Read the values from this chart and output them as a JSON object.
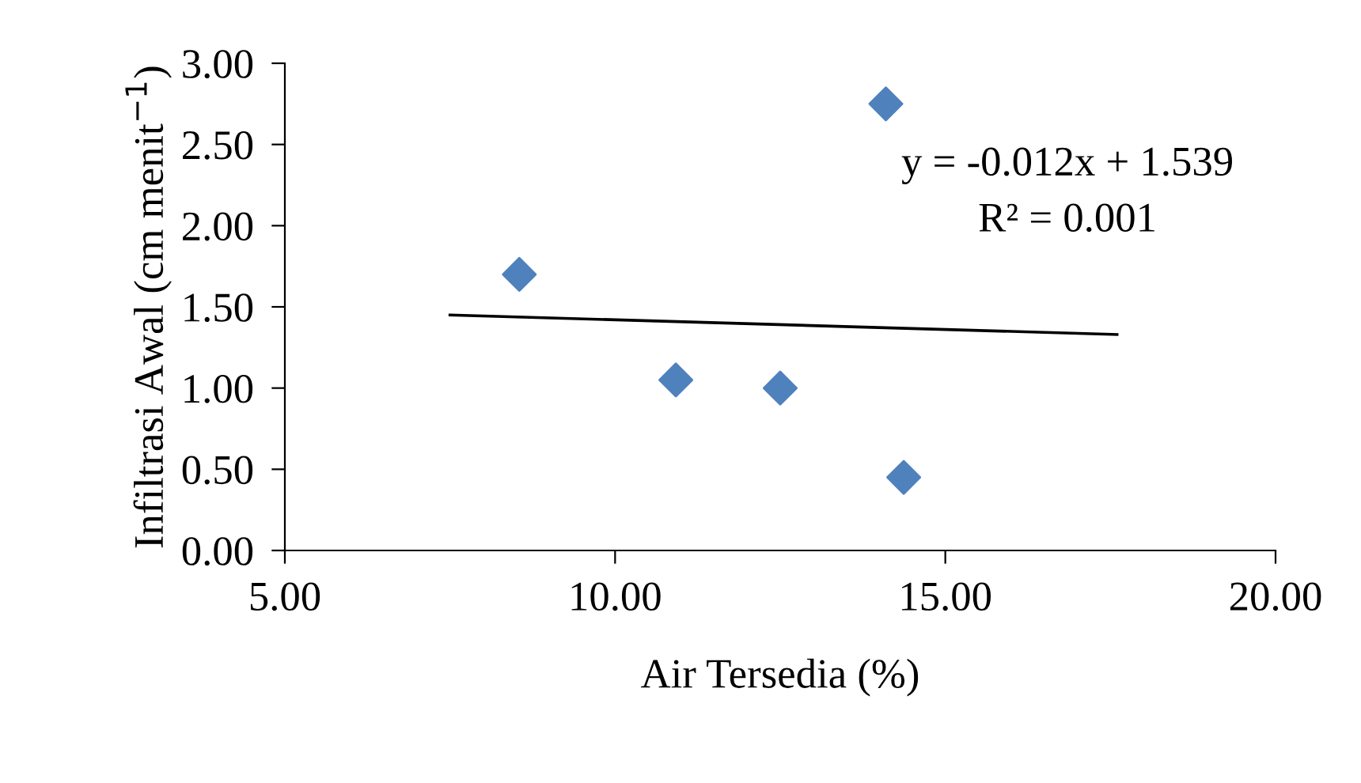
{
  "chart_data": {
    "type": "scatter",
    "xlabel": "Air Tersedia (%)",
    "ylabel": "Infiltrasi Awal (cm menit$^{−1}$)",
    "xlim": [
      5.0,
      20.0
    ],
    "xticks": [
      {
        "value": 5,
        "label": "5.00"
      },
      {
        "value": 10,
        "label": "10.00"
      },
      {
        "value": 15,
        "label": "15.00"
      },
      {
        "value": 20,
        "label": "20.00"
      }
    ],
    "ylim": [
      0.0,
      3.0
    ],
    "yticks": [
      {
        "value": 0,
        "label": "0.00"
      },
      {
        "value": 0.5,
        "label": "0.50"
      },
      {
        "value": 1,
        "label": "1.00"
      },
      {
        "value": 1.5,
        "label": "1.50"
      },
      {
        "value": 2,
        "label": "2.00"
      },
      {
        "value": 2.5,
        "label": "2.50"
      },
      {
        "value": 3,
        "label": "3.00"
      }
    ],
    "grid": false,
    "legend": false,
    "marker": "diamond",
    "series": [
      {
        "color": "#4f81bd",
        "x": [
          8.55,
          10.92,
          12.5,
          14.1,
          14.37
        ],
        "values": [
          1.7,
          1.05,
          1.0,
          2.75,
          0.45
        ]
      },
      {
        "type": "line",
        "color": "#000000",
        "marker": "none",
        "line_style": "solid",
        "x": [
          7.5,
          17.6
        ],
        "values": [
          1.45,
          1.33
        ]
      }
    ],
    "annotations": [
      "y = -0.012x + 1.539",
      "R² = 0.001"
    ]
  }
}
